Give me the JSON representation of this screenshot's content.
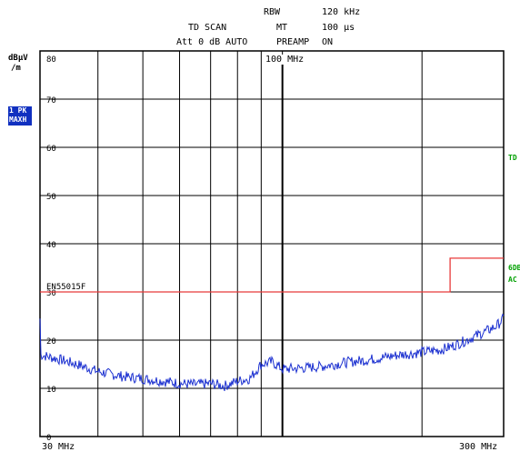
{
  "header": {
    "rbw_label": "RBW",
    "rbw_value": "120 kHz",
    "mode": "TD SCAN",
    "mt_label": "MT",
    "mt_value": "100 µs",
    "att": "Att 0 dB AUTO",
    "preamp_label": "PREAMP",
    "preamp_value": "ON"
  },
  "left": {
    "unit_line1": "dBµV",
    "unit_line2": "/m",
    "trace_badge_line1": "1 PK",
    "trace_badge_line2": "MAXH"
  },
  "right": {
    "label1": "TD",
    "label2_line1": "6DB",
    "label2_line2": "AC"
  },
  "plot": {
    "marker_label": "100 MHz",
    "limit_line_label": "EN55015F",
    "x_start": "30 MHz",
    "x_stop": "300 MHz",
    "colors": {
      "trace": "#1a2fd0",
      "limit": "#e83a3a",
      "grid": "#000000",
      "green_label": "#00a000"
    }
  },
  "chart_data": {
    "type": "line",
    "title": "",
    "xlabel": "",
    "ylabel": "dBµV/m",
    "x_unit": "MHz",
    "xlim": [
      30,
      300
    ],
    "ylim": [
      0,
      80
    ],
    "y_ticks": [
      0,
      10,
      20,
      30,
      40,
      50,
      60,
      70,
      80
    ],
    "x_tick_labels": [
      "30 MHz",
      "300 MHz"
    ],
    "vertical_gridlines_MHz": [
      40,
      50,
      60,
      70,
      80,
      90,
      100,
      200,
      300
    ],
    "marker_MHz": 100,
    "limit_line": {
      "name": "EN55015F",
      "points": [
        [
          30,
          30
        ],
        [
          230,
          30
        ],
        [
          230,
          37
        ],
        [
          300,
          37
        ]
      ]
    },
    "series": [
      {
        "x": [
          30,
          33,
          36,
          40,
          45,
          50,
          55,
          60,
          65,
          70,
          75,
          80,
          85,
          90,
          95,
          100,
          110,
          120,
          130,
          140,
          150,
          160,
          170,
          180,
          190,
          200,
          210,
          220,
          230,
          240,
          250,
          260,
          270,
          280,
          290,
          300
        ],
        "values": [
          17,
          16,
          15,
          13.5,
          12.5,
          12,
          11.5,
          11,
          10.8,
          11,
          10.5,
          11.5,
          12,
          15,
          15.5,
          14,
          14.2,
          14.5,
          15,
          15.5,
          15.8,
          16.2,
          16.6,
          17,
          17.2,
          17.5,
          17.8,
          18,
          18.6,
          19.3,
          20,
          20.8,
          21.5,
          22.2,
          23,
          24.5
        ]
      }
    ]
  }
}
